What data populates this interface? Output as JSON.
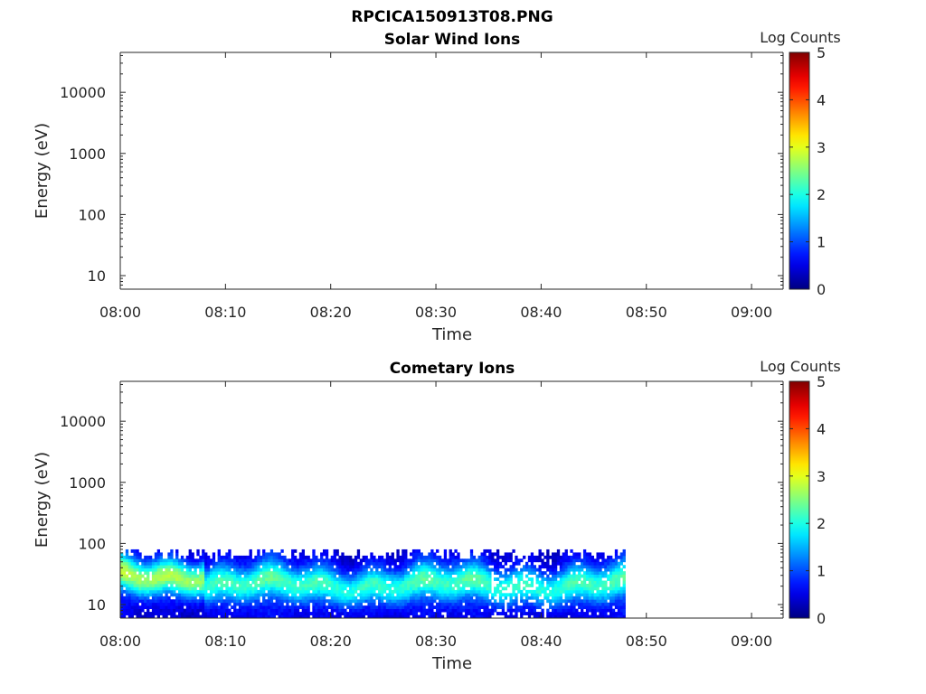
{
  "figure": {
    "title": "RPCICA150913T08.PNG"
  },
  "chart_data": [
    {
      "type": "heatmap",
      "title": "Solar Wind Ions",
      "xlabel": "Time",
      "ylabel": "Energy (eV)",
      "x_ticks": [
        "08:00",
        "08:10",
        "08:20",
        "08:30",
        "08:40",
        "08:50",
        "09:00"
      ],
      "xlim": [
        "08:00",
        "09:03"
      ],
      "y_scale": "log",
      "y_ticks": [
        10,
        100,
        1000,
        10000
      ],
      "ylim": [
        6,
        45000
      ],
      "colorbar": {
        "label": "Log Counts",
        "range": [
          0,
          5
        ],
        "ticks": [
          0,
          1,
          2,
          3,
          4,
          5
        ],
        "colormap": "jet"
      },
      "data_present": false
    },
    {
      "type": "heatmap",
      "title": "Cometary Ions",
      "xlabel": "Time",
      "ylabel": "Energy (eV)",
      "x_ticks": [
        "08:00",
        "08:10",
        "08:20",
        "08:30",
        "08:40",
        "08:50",
        "09:00"
      ],
      "xlim": [
        "08:00",
        "09:03"
      ],
      "y_scale": "log",
      "y_ticks": [
        10,
        100,
        1000,
        10000
      ],
      "ylim": [
        6,
        45000
      ],
      "colorbar": {
        "label": "Log Counts",
        "range": [
          0,
          5
        ],
        "ticks": [
          0,
          1,
          2,
          3,
          4,
          5
        ],
        "colormap": "jet"
      },
      "data_present": true,
      "data_time_range": [
        "08:00",
        "08:48"
      ],
      "data_energy_range_ev": [
        6,
        80
      ],
      "peak_band_energy_ev": [
        15,
        40
      ],
      "typical_log_counts": [
        0.3,
        2.7
      ]
    }
  ]
}
